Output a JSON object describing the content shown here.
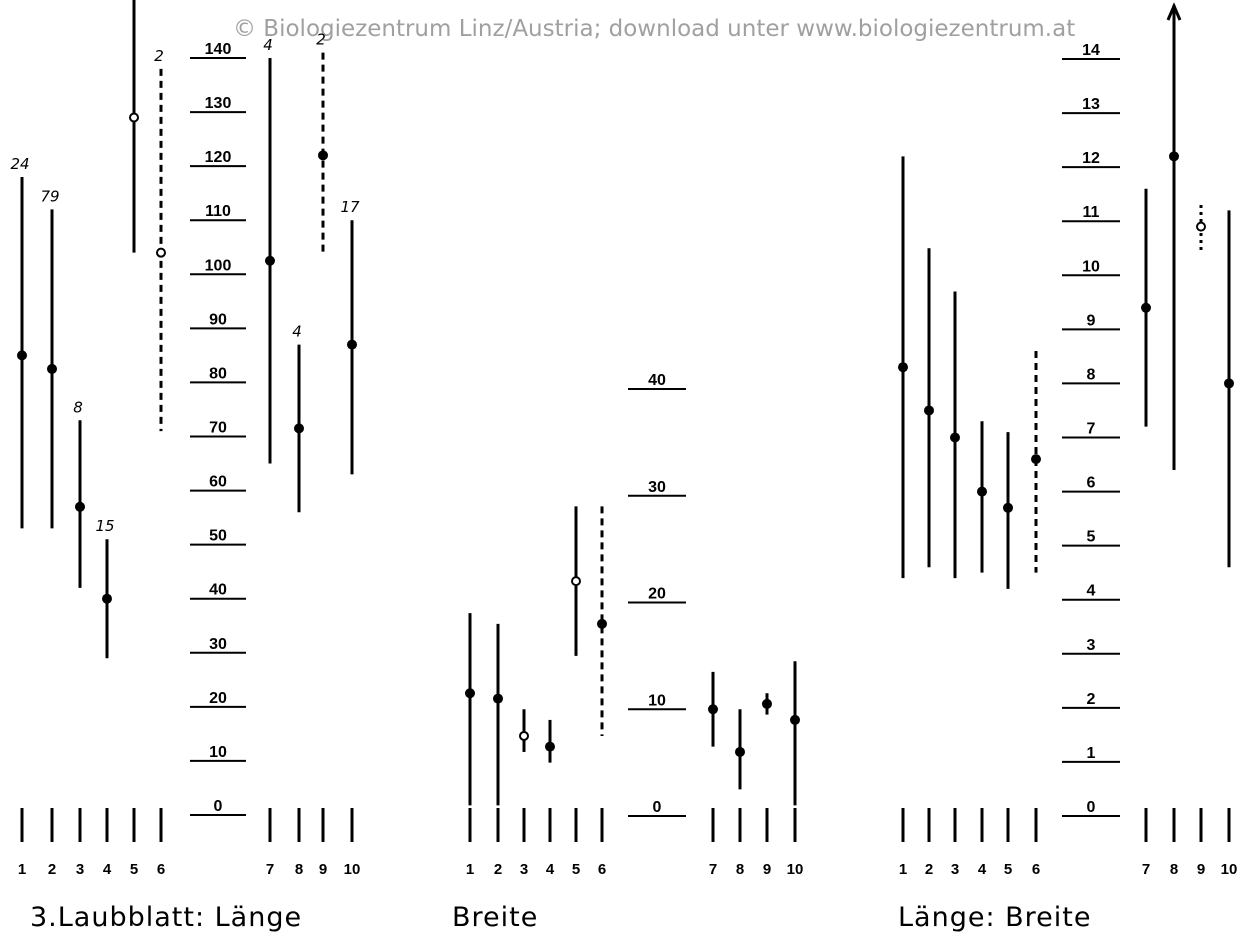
{
  "watermark": "© Biologiezentrum Linz/Austria; download unter www.biologiezentrum.at",
  "captions": [
    "3.Laubblatt:  Länge",
    "Breite",
    "Länge: Breite"
  ],
  "chart_data": [
    {
      "type": "range",
      "title": "",
      "caption": "3.Laubblatt:  Länge",
      "ylabel": "",
      "ylim": [
        0,
        140
      ],
      "ticks": [
        0,
        10,
        20,
        30,
        40,
        50,
        60,
        70,
        80,
        90,
        100,
        110,
        120,
        130,
        140
      ],
      "tick_labels": [
        "0",
        "10",
        "20",
        "30",
        "40",
        "50",
        "60",
        "70",
        "80",
        "90",
        "100",
        "110",
        "120",
        "130",
        "140"
      ],
      "categories": [
        "1",
        "2",
        "3",
        "4",
        "5",
        "6",
        "7",
        "8",
        "9",
        "10"
      ],
      "ranges": [
        {
          "cat": "1",
          "min": 53,
          "max": 118,
          "mean": 85,
          "n": "24",
          "style": "solid",
          "marker": "filled"
        },
        {
          "cat": "2",
          "min": 53,
          "max": 112,
          "mean": 82.5,
          "n": "79",
          "style": "solid",
          "marker": "filled"
        },
        {
          "cat": "3",
          "min": 42,
          "max": 73,
          "mean": 57,
          "n": "8",
          "style": "solid",
          "marker": "filled"
        },
        {
          "cat": "4",
          "min": 29,
          "max": 51,
          "mean": 40,
          "n": "15",
          "style": "solid",
          "marker": "filled"
        },
        {
          "cat": "5",
          "min": 104,
          "max": 152,
          "mean": 129,
          "n": "",
          "style": "solid",
          "marker": "open"
        },
        {
          "cat": "6",
          "min": 71,
          "max": 138,
          "mean": 104,
          "n": "2",
          "style": "dashed",
          "marker": "open"
        },
        {
          "cat": "7",
          "min": 65,
          "max": 140,
          "mean": 102.5,
          "n": "4",
          "style": "solid",
          "marker": "filled"
        },
        {
          "cat": "8",
          "min": 56,
          "max": 87,
          "mean": 71.5,
          "n": "4",
          "style": "solid",
          "marker": "filled"
        },
        {
          "cat": "9",
          "min": 104,
          "max": 141,
          "mean": 122,
          "n": "2",
          "style": "dashed",
          "marker": "filled"
        },
        {
          "cat": "10",
          "min": 63,
          "max": 110,
          "mean": 87,
          "n": "17",
          "style": "solid",
          "marker": "filled"
        }
      ]
    },
    {
      "type": "range",
      "title": "",
      "caption": "Breite",
      "ylabel": "",
      "ylim": [
        0,
        40
      ],
      "ticks": [
        0,
        10,
        20,
        30,
        40
      ],
      "tick_labels": [
        "0",
        "10",
        "20",
        "30",
        "40"
      ],
      "categories": [
        "1",
        "2",
        "3",
        "4",
        "5",
        "6",
        "7",
        "8",
        "9",
        "10"
      ],
      "ranges": [
        {
          "cat": "1",
          "min": 1,
          "max": 19,
          "mean": 11.5,
          "n": "",
          "style": "solid",
          "marker": "filled"
        },
        {
          "cat": "2",
          "min": 1,
          "max": 18,
          "mean": 11,
          "n": "",
          "style": "solid",
          "marker": "filled"
        },
        {
          "cat": "3",
          "min": 6,
          "max": 10,
          "mean": 7.5,
          "n": "",
          "style": "solid",
          "marker": "open"
        },
        {
          "cat": "4",
          "min": 5,
          "max": 9,
          "mean": 6.5,
          "n": "",
          "style": "solid",
          "marker": "filled"
        },
        {
          "cat": "5",
          "min": 15,
          "max": 29,
          "mean": 22,
          "n": "",
          "style": "solid",
          "marker": "open"
        },
        {
          "cat": "6",
          "min": 7.5,
          "max": 29,
          "mean": 18,
          "n": "",
          "style": "dashed",
          "marker": "filled"
        },
        {
          "cat": "7",
          "min": 6.5,
          "max": 13.5,
          "mean": 10,
          "n": "",
          "style": "solid",
          "marker": "filled"
        },
        {
          "cat": "8",
          "min": 2.5,
          "max": 10,
          "mean": 6,
          "n": "",
          "style": "solid",
          "marker": "filled"
        },
        {
          "cat": "9",
          "min": 9.5,
          "max": 11.5,
          "mean": 10.5,
          "n": "",
          "style": "solid",
          "marker": "filled"
        },
        {
          "cat": "10",
          "min": 1,
          "max": 14.5,
          "mean": 9,
          "n": "",
          "style": "solid",
          "marker": "filled"
        }
      ]
    },
    {
      "type": "range",
      "title": "",
      "caption": "Länge: Breite",
      "ylabel": "",
      "ylim": [
        0,
        14
      ],
      "ticks": [
        0,
        1,
        2,
        3,
        4,
        5,
        6,
        7,
        8,
        9,
        10,
        11,
        12,
        13,
        14
      ],
      "tick_labels": [
        "0",
        "1",
        "2",
        "3",
        "4",
        "5",
        "6",
        "7",
        "8",
        "9",
        "10",
        "11",
        "12",
        "13",
        "14"
      ],
      "categories": [
        "1",
        "2",
        "3",
        "4",
        "5",
        "6",
        "7",
        "8",
        "9",
        "10"
      ],
      "ranges": [
        {
          "cat": "1",
          "min": 4.4,
          "max": 12.2,
          "mean": 8.3,
          "n": "",
          "style": "solid",
          "marker": "filled"
        },
        {
          "cat": "2",
          "min": 4.6,
          "max": 10.5,
          "mean": 7.5,
          "n": "",
          "style": "solid",
          "marker": "filled"
        },
        {
          "cat": "3",
          "min": 4.4,
          "max": 9.7,
          "mean": 7,
          "n": "",
          "style": "solid",
          "marker": "filled"
        },
        {
          "cat": "4",
          "min": 4.5,
          "max": 7.3,
          "mean": 6,
          "n": "",
          "style": "solid",
          "marker": "filled"
        },
        {
          "cat": "5",
          "min": 4.2,
          "max": 7.1,
          "mean": 5.7,
          "n": "",
          "style": "solid",
          "marker": "filled"
        },
        {
          "cat": "6",
          "min": 4.5,
          "max": 8.6,
          "mean": 6.6,
          "n": "",
          "style": "dashed",
          "marker": "filled"
        },
        {
          "cat": "7",
          "min": 7.2,
          "max": 11.6,
          "mean": 9.4,
          "n": "",
          "style": "solid",
          "marker": "filled"
        },
        {
          "cat": "8",
          "min": 6.4,
          "max": 15,
          "mean": 12.2,
          "n": "",
          "style": "solid",
          "marker": "filled",
          "arrow": true
        },
        {
          "cat": "9",
          "min": 10.4,
          "max": 11.3,
          "mean": 10.9,
          "n": "",
          "style": "dotted",
          "marker": "open"
        },
        {
          "cat": "10",
          "min": 4.6,
          "max": 11.2,
          "mean": 8,
          "n": "",
          "style": "solid",
          "marker": "filled"
        }
      ]
    }
  ]
}
